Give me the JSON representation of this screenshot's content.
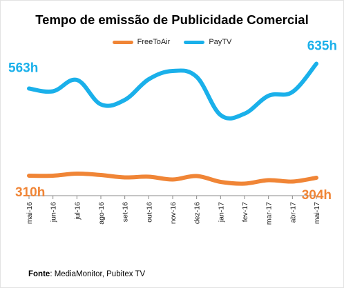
{
  "chart_data": {
    "type": "line",
    "title": "Tempo de emissão de Publicidade Comercial",
    "categories": [
      "mai-16",
      "jun-16",
      "jul-16",
      "ago-16",
      "set-16",
      "out-16",
      "nov-16",
      "dez-16",
      "jan-17",
      "fev-17",
      "mar-17",
      "abr-17",
      "mai-17"
    ],
    "series": [
      {
        "name": "FreeToAir",
        "color": "#f08536",
        "values": [
          310,
          310,
          316,
          312,
          305,
          307,
          299,
          309,
          292,
          287,
          297,
          293,
          304
        ],
        "start_label": "310h",
        "end_label": "304h"
      },
      {
        "name": "PayTV",
        "color": "#1ab0ea",
        "values": [
          563,
          555,
          588,
          517,
          530,
          590,
          614,
          597,
          486,
          490,
          542,
          553,
          635
        ],
        "start_label": "563h",
        "end_label": "635h"
      }
    ],
    "ylim": [
      140,
      680
    ],
    "grid": false,
    "legend_position": "top-center"
  },
  "source": {
    "label": "Fonte",
    "text": ": MediaMonitor, Pubitex TV"
  }
}
